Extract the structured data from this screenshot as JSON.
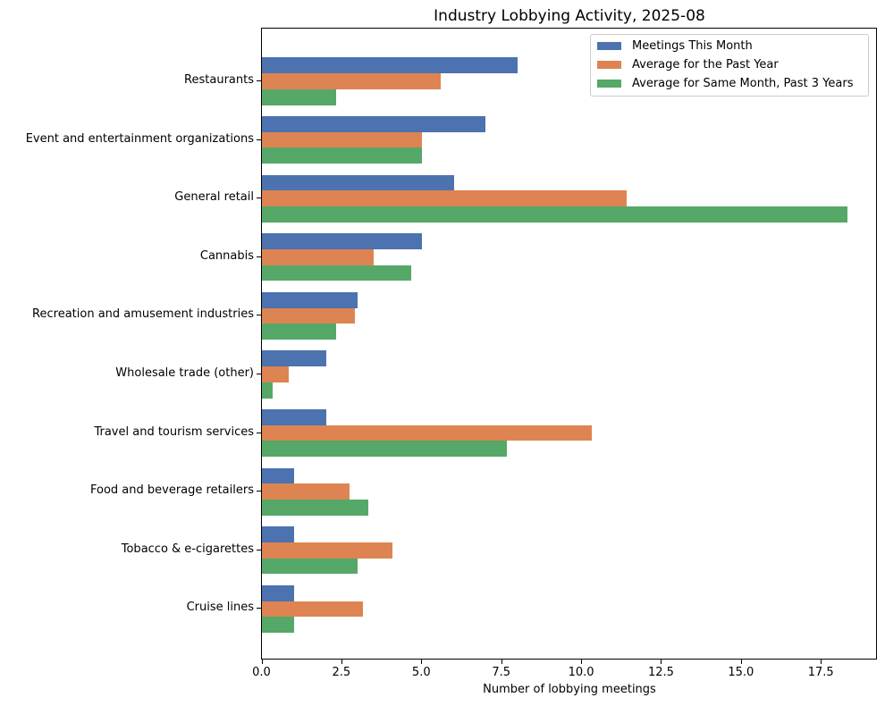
{
  "figure": {
    "background_color": "#ffffff",
    "frame_color": "#000000",
    "legend_border_color": "#cccccc"
  },
  "chart_data": {
    "type": "bar",
    "orientation": "horizontal",
    "title": "Industry Lobbying Activity, 2025-08",
    "xlabel": "Number of lobbying meetings",
    "ylabel": "",
    "categories": [
      "Restaurants",
      "Event and entertainment organizations",
      "General retail",
      "Cannabis",
      "Recreation and amusement industries",
      "Wholesale trade (other)",
      "Travel and tourism services",
      "Food and beverage retailers",
      "Tobacco & e-cigarettes",
      "Cruise lines"
    ],
    "series": [
      {
        "name": "Meetings This Month",
        "color": "#4c72b0",
        "values": [
          8,
          7,
          6,
          5,
          3,
          2,
          2,
          1,
          1,
          1
        ]
      },
      {
        "name": "Average for the Past Year",
        "color": "#dd8452",
        "values": [
          5.58,
          5.0,
          11.42,
          3.5,
          2.92,
          0.83,
          10.33,
          2.75,
          4.08,
          3.17
        ]
      },
      {
        "name": "Average for Same Month, Past 3 Years",
        "color": "#55a868",
        "values": [
          2.33,
          5.0,
          18.33,
          4.67,
          2.33,
          0.33,
          7.67,
          3.33,
          3.0,
          1.0
        ]
      }
    ],
    "x_ticks": [
      0.0,
      2.5,
      5.0,
      7.5,
      10.0,
      12.5,
      15.0,
      17.5
    ],
    "x_tick_format": "one_decimal",
    "xlim": [
      0,
      19.27
    ],
    "grid": false,
    "legend_position": "upper right"
  }
}
